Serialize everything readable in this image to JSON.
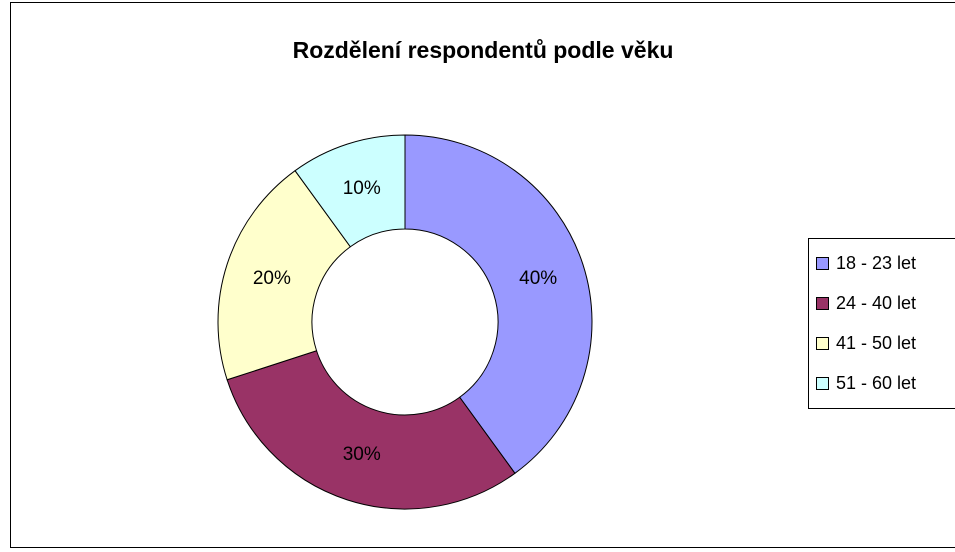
{
  "chart_data": {
    "type": "donut",
    "title": "Rozdělení respondentů podle věku",
    "categories": [
      "18 - 23 let",
      "24 - 40 let",
      "41 - 50 let",
      "51 - 60 let"
    ],
    "values": [
      40,
      30,
      20,
      10
    ],
    "value_labels": [
      "40%",
      "30%",
      "20%",
      "10%"
    ],
    "colors": [
      "#9999ff",
      "#993366",
      "#ffffcc",
      "#ccffff"
    ],
    "legend": "right"
  }
}
